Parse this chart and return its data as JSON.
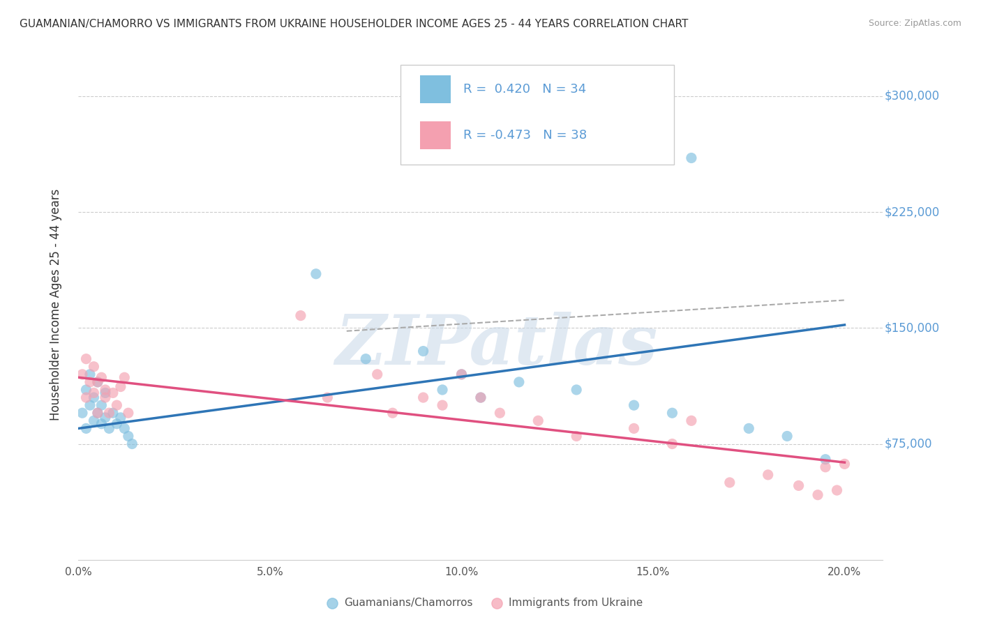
{
  "title": "GUAMANIAN/CHAMORRO VS IMMIGRANTS FROM UKRAINE HOUSEHOLDER INCOME AGES 25 - 44 YEARS CORRELATION CHART",
  "source": "Source: ZipAtlas.com",
  "ylabel": "Householder Income Ages 25 - 44 years",
  "xlim": [
    0.0,
    0.21
  ],
  "ylim": [
    0,
    330000
  ],
  "yticks": [
    75000,
    150000,
    225000,
    300000
  ],
  "ytick_labels": [
    "$75,000",
    "$150,000",
    "$225,000",
    "$300,000"
  ],
  "xticks": [
    0.0,
    0.05,
    0.1,
    0.15,
    0.2
  ],
  "xtick_labels": [
    "0.0%",
    "5.0%",
    "10.0%",
    "15.0%",
    "20.0%"
  ],
  "background_color": "#ffffff",
  "grid_color": "#cccccc",
  "blue_color": "#7fbfdf",
  "pink_color": "#f4a0b0",
  "blue_line_color": "#2e75b6",
  "pink_line_color": "#e05080",
  "dashed_line_color": "#aaaaaa",
  "tick_label_color": "#5b9bd5",
  "legend_R_color": "#5b9bd5",
  "legend_text_color": "#333333",
  "legend1_label": "Guamanians/Chamorros",
  "legend2_label": "Immigrants from Ukraine",
  "watermark_text": "ZIPatlas",
  "blue_scatter_x": [
    0.001,
    0.002,
    0.002,
    0.003,
    0.003,
    0.004,
    0.004,
    0.005,
    0.005,
    0.006,
    0.006,
    0.007,
    0.007,
    0.008,
    0.009,
    0.01,
    0.011,
    0.012,
    0.013,
    0.014,
    0.062,
    0.075,
    0.09,
    0.095,
    0.1,
    0.105,
    0.115,
    0.13,
    0.145,
    0.155,
    0.16,
    0.175,
    0.185,
    0.195
  ],
  "blue_scatter_y": [
    95000,
    110000,
    85000,
    100000,
    120000,
    90000,
    105000,
    95000,
    115000,
    88000,
    100000,
    92000,
    108000,
    85000,
    95000,
    88000,
    92000,
    85000,
    80000,
    75000,
    185000,
    130000,
    135000,
    110000,
    120000,
    105000,
    115000,
    110000,
    100000,
    95000,
    260000,
    85000,
    80000,
    65000
  ],
  "pink_scatter_x": [
    0.001,
    0.002,
    0.002,
    0.003,
    0.004,
    0.004,
    0.005,
    0.005,
    0.006,
    0.007,
    0.007,
    0.008,
    0.009,
    0.01,
    0.011,
    0.012,
    0.013,
    0.058,
    0.065,
    0.078,
    0.082,
    0.09,
    0.095,
    0.1,
    0.105,
    0.11,
    0.12,
    0.13,
    0.145,
    0.155,
    0.16,
    0.17,
    0.18,
    0.188,
    0.193,
    0.195,
    0.198,
    0.2
  ],
  "pink_scatter_y": [
    120000,
    130000,
    105000,
    115000,
    125000,
    108000,
    115000,
    95000,
    118000,
    105000,
    110000,
    95000,
    108000,
    100000,
    112000,
    118000,
    95000,
    158000,
    105000,
    120000,
    95000,
    105000,
    100000,
    120000,
    105000,
    95000,
    90000,
    80000,
    85000,
    75000,
    90000,
    50000,
    55000,
    48000,
    42000,
    60000,
    45000,
    62000
  ],
  "blue_line_x0": 0.0,
  "blue_line_x1": 0.2,
  "blue_line_y0": 85000,
  "blue_line_y1": 152000,
  "pink_line_x0": 0.0,
  "pink_line_x1": 0.2,
  "pink_line_y0": 118000,
  "pink_line_y1": 63000,
  "dash_line_x0": 0.07,
  "dash_line_x1": 0.2,
  "dash_line_y0": 148000,
  "dash_line_y1": 168000
}
